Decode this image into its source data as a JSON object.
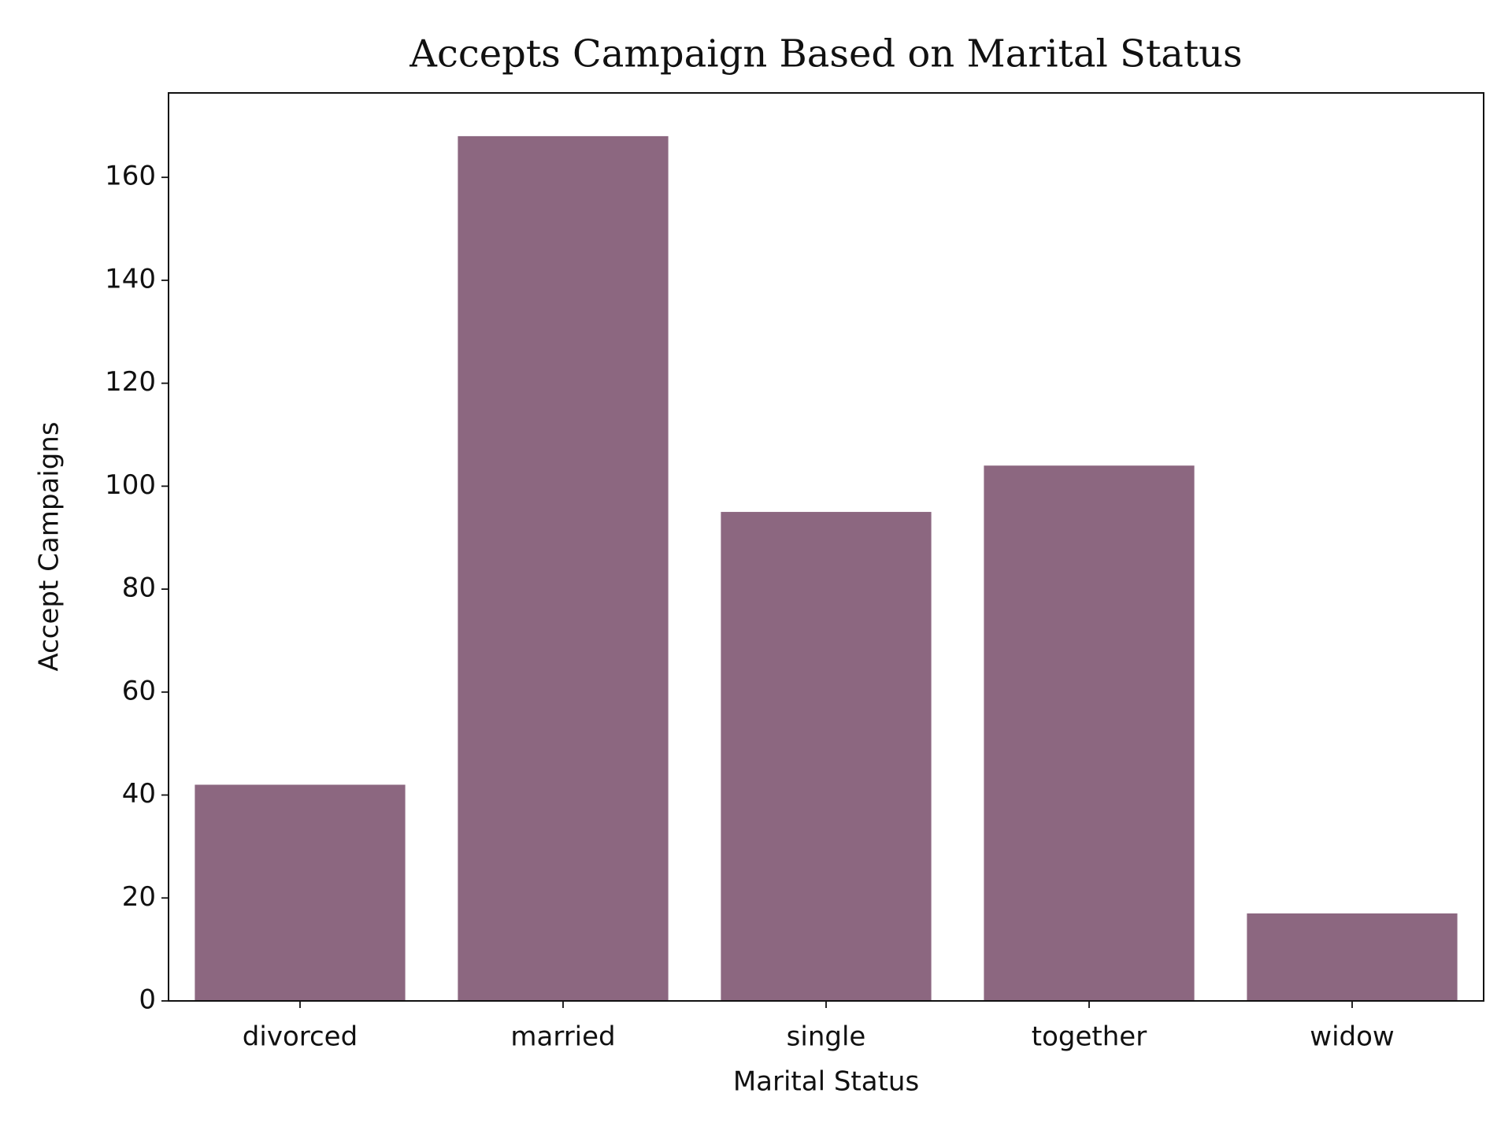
{
  "chart_data": {
    "type": "bar",
    "title": "Accepts Campaign Based on Marital Status",
    "x_label": "Marital Status",
    "y_label": "Accept Campaigns",
    "categories": [
      "divorced",
      "married",
      "single",
      "together",
      "widow"
    ],
    "values": [
      42,
      168,
      95,
      104,
      17
    ],
    "color": "#8c6780",
    "ylim": [
      0,
      176.4
    ],
    "yticks": [
      0,
      20,
      40,
      60,
      80,
      100,
      120,
      140,
      160
    ],
    "grid": false
  }
}
